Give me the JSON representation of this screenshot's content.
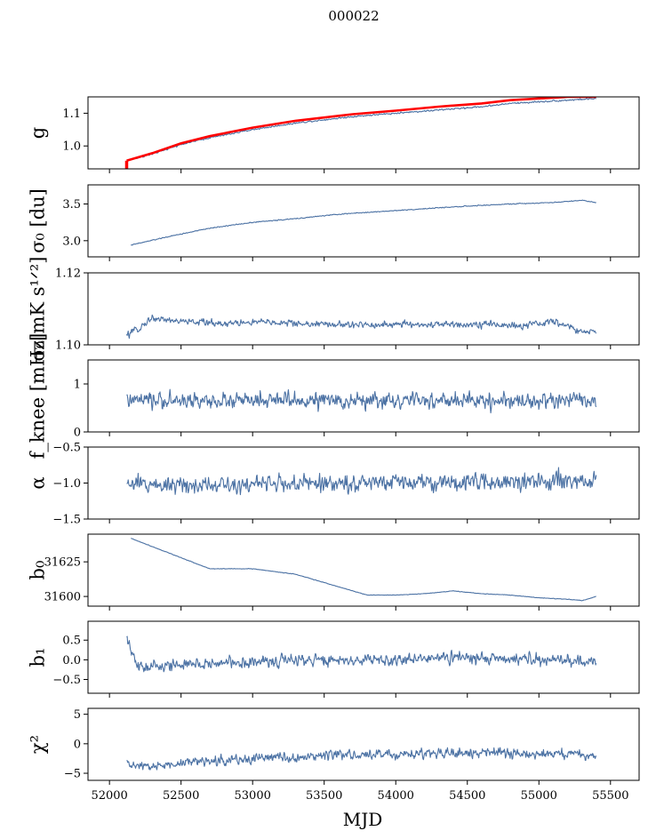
{
  "figure": {
    "suptitle": "000022",
    "xlabel": "MJD"
  },
  "colors": {
    "series": "#4c72a4",
    "model": "#ff0000",
    "axes": "#000000"
  },
  "chart_data": [
    {
      "type": "line",
      "id": "g",
      "ylabel": "g",
      "ylim": [
        0.93,
        1.15
      ],
      "yticks": [
        1.0,
        1.1
      ],
      "ytick_labels": [
        "1.0",
        "1.1"
      ],
      "xlim": [
        51850,
        55700
      ],
      "series": [
        {
          "color": "#4c72a4",
          "noise": 0.002,
          "x": [
            52120,
            52300,
            52500,
            52700,
            53000,
            53300,
            53700,
            54000,
            54300,
            54600,
            54800,
            55000,
            55200,
            55400
          ],
          "y": [
            0.955,
            0.975,
            1.005,
            1.025,
            1.05,
            1.07,
            1.09,
            1.1,
            1.11,
            1.12,
            1.13,
            1.135,
            1.14,
            1.145
          ]
        }
      ],
      "overlay": {
        "color": "#ff0000",
        "x": [
          52120,
          52300,
          52500,
          52700,
          53000,
          53300,
          53700,
          54000,
          54300,
          54600,
          54800,
          55000,
          55200,
          55400
        ],
        "y": [
          0.955,
          0.978,
          1.008,
          1.03,
          1.056,
          1.077,
          1.097,
          1.108,
          1.12,
          1.13,
          1.14,
          1.145,
          1.15,
          1.15
        ]
      }
    },
    {
      "type": "line",
      "id": "sigma0-du",
      "ylabel": "σ₀ [du]",
      "ylim": [
        2.78,
        3.76
      ],
      "yticks": [
        3.0,
        3.5
      ],
      "ytick_labels": [
        "3.0",
        "3.5"
      ],
      "xlim": [
        51850,
        55700
      ],
      "series": [
        {
          "color": "#4c72a4",
          "noise": 0.005,
          "x": [
            52150,
            52400,
            52700,
            53000,
            53300,
            53600,
            54000,
            54400,
            54800,
            55100,
            55300,
            55400
          ],
          "y": [
            2.94,
            3.05,
            3.17,
            3.25,
            3.3,
            3.36,
            3.41,
            3.46,
            3.5,
            3.52,
            3.55,
            3.52
          ]
        }
      ]
    },
    {
      "type": "line",
      "id": "sigma0-mk",
      "ylabel": "σ₀[mK s¹ᐟ²]",
      "ylim": [
        1.1,
        1.12
      ],
      "yticks": [
        1.1,
        1.12
      ],
      "ytick_labels": [
        "1.10",
        "1.12"
      ],
      "xlim": [
        51850,
        55700
      ],
      "series": [
        {
          "color": "#4c72a4",
          "noise": 0.0008,
          "x": [
            52120,
            52200,
            52300,
            52500,
            52800,
            53100,
            53400,
            53700,
            54000,
            54300,
            54600,
            54900,
            55100,
            55200,
            55300,
            55400
          ],
          "y": [
            1.1025,
            1.1045,
            1.1075,
            1.1065,
            1.106,
            1.1063,
            1.1058,
            1.1055,
            1.1057,
            1.1056,
            1.1058,
            1.1052,
            1.1065,
            1.1052,
            1.1035,
            1.1035
          ]
        }
      ]
    },
    {
      "type": "line",
      "id": "fknee",
      "ylabel": "f_knee [mHz]",
      "ylim": [
        0,
        1.5
      ],
      "yticks": [
        0,
        1
      ],
      "ytick_labels": [
        "0",
        "1"
      ],
      "xlim": [
        51850,
        55700
      ],
      "series": [
        {
          "color": "#4c72a4",
          "noise": 0.14,
          "x": [
            52120,
            55400
          ],
          "y": [
            0.65,
            0.65
          ]
        }
      ]
    },
    {
      "type": "line",
      "id": "alpha",
      "ylabel": "α",
      "ylim": [
        -1.5,
        -0.5
      ],
      "yticks": [
        -1.5,
        -1.0,
        -0.5
      ],
      "ytick_labels": [
        "−1.5",
        "−1.0",
        "−0.5"
      ],
      "xlim": [
        51850,
        55700
      ],
      "series": [
        {
          "color": "#4c72a4",
          "noise": 0.1,
          "x": [
            52120,
            55400
          ],
          "y": [
            -1.02,
            -0.98
          ]
        }
      ]
    },
    {
      "type": "line",
      "id": "b0",
      "ylabel": "b₀",
      "ylim": [
        31593,
        31645
      ],
      "yticks": [
        31600,
        31625
      ],
      "ytick_labels": [
        "31600",
        "31625"
      ],
      "xlim": [
        51850,
        55700
      ],
      "series": [
        {
          "color": "#4c72a4",
          "noise": 0.15,
          "x": [
            52150,
            52300,
            52500,
            52700,
            53000,
            53300,
            53600,
            53800,
            54000,
            54200,
            54400,
            54600,
            54800,
            55000,
            55200,
            55300,
            55400
          ],
          "y": [
            31642,
            31636,
            31628,
            31620,
            31620,
            31616,
            31607,
            31601,
            31601,
            31602,
            31604,
            31602,
            31601,
            31599,
            31598,
            31597,
            31600
          ]
        }
      ]
    },
    {
      "type": "line",
      "id": "b1",
      "ylabel": "b₁",
      "ylim": [
        -0.85,
        0.98
      ],
      "yticks": [
        -0.5,
        0.0,
        0.5
      ],
      "ytick_labels": [
        "−0.5",
        "0.0",
        "0.5"
      ],
      "xlim": [
        51850,
        55700
      ],
      "series": [
        {
          "color": "#4c72a4",
          "noise": 0.13,
          "x": [
            52120,
            52200,
            52400,
            52700,
            53000,
            53500,
            54000,
            54500,
            55000,
            55400
          ],
          "y": [
            0.5,
            -0.2,
            -0.15,
            -0.1,
            -0.05,
            0.0,
            0.0,
            0.05,
            0.0,
            -0.05
          ]
        }
      ]
    },
    {
      "type": "line",
      "id": "chi2",
      "ylabel": "χ²",
      "ylim": [
        -6.2,
        6
      ],
      "yticks": [
        -5,
        0,
        5
      ],
      "ytick_labels": [
        "−5",
        "0",
        "5"
      ],
      "xticks": [
        52000,
        52500,
        53000,
        53500,
        54000,
        54500,
        55000,
        55500
      ],
      "xtick_labels": [
        "52000",
        "52500",
        "53000",
        "53500",
        "54000",
        "54500",
        "55000",
        "55500"
      ],
      "xlim": [
        51850,
        55700
      ],
      "series": [
        {
          "color": "#4c72a4",
          "noise": 0.7,
          "x": [
            52120,
            52300,
            52500,
            52800,
            53100,
            53500,
            54000,
            54500,
            55000,
            55400
          ],
          "y": [
            -3.5,
            -4.0,
            -3.2,
            -2.8,
            -2.4,
            -2.0,
            -1.8,
            -1.6,
            -1.7,
            -2.0
          ]
        }
      ]
    }
  ]
}
